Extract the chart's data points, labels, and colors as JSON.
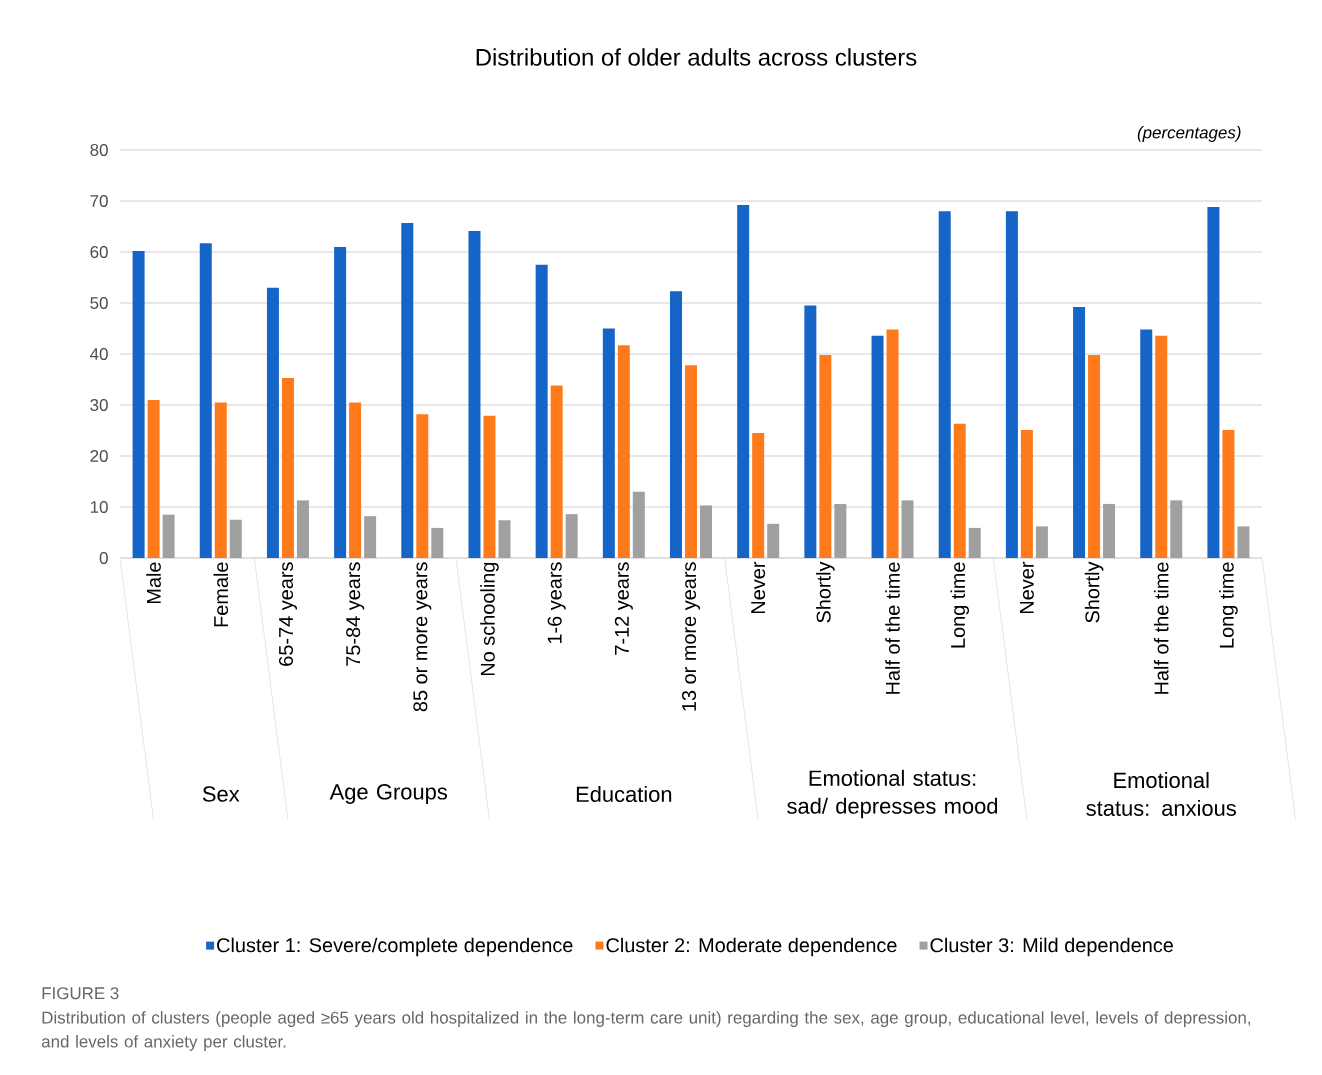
{
  "chart_data": {
    "type": "bar",
    "title": "Distribution of older adults across clusters",
    "categories": [
      "Male",
      "Female",
      "65-74 years",
      "75-84 years",
      "85 or more years",
      "No schooling",
      "1-6 years",
      "7-12 years",
      "13 or more years",
      "Never",
      "Shortly",
      "Half of the time",
      "Long time",
      "Never",
      "Shortly",
      "Half of the time",
      "Long time"
    ],
    "series": [
      {
        "name": "Cluster 1: Severe/complete dependence",
        "color": "#1565c8",
        "values": [
          60.2,
          61.7,
          53,
          61,
          65.7,
          64.1,
          57.5,
          45,
          52.3,
          69.2,
          49.5,
          43.6,
          68,
          68,
          49.2,
          44.8,
          68.8
        ]
      },
      {
        "name": "Cluster 2: Moderate dependence",
        "color": "#ff7a1a",
        "values": [
          31,
          30.5,
          35.3,
          30.5,
          28.2,
          27.9,
          33.8,
          41.7,
          37.8,
          24.5,
          39.8,
          44.8,
          26.3,
          25.1,
          39.8,
          43.6,
          25.1
        ]
      },
      {
        "name": "Cluster 3: Mild dependence",
        "color": "#a0a0a0",
        "values": [
          8.5,
          7.5,
          11.3,
          8.2,
          5.9,
          7.4,
          8.6,
          13,
          10.3,
          6.7,
          10.6,
          11.3,
          5.9,
          6.2,
          10.6,
          11.3,
          6.2
        ]
      }
    ],
    "ylim": [
      0,
      80
    ],
    "yticks": [
      0,
      10,
      20,
      30,
      40,
      50,
      60,
      70,
      80
    ],
    "grid": "y",
    "legend": "bottom",
    "annotations": [
      "(percentages)",
      "Sex",
      "Age Groups",
      "Education",
      "Emotional status: sad/ depresses mood",
      "Emotional status: anxious",
      "FIGURE 3",
      "Distribution of clusters (people aged ≥65 years old hospitalized in the long-term care unit) regarding the sex, age group, educational level, levels of depression, and levels of anxiety per cluster."
    ]
  }
}
